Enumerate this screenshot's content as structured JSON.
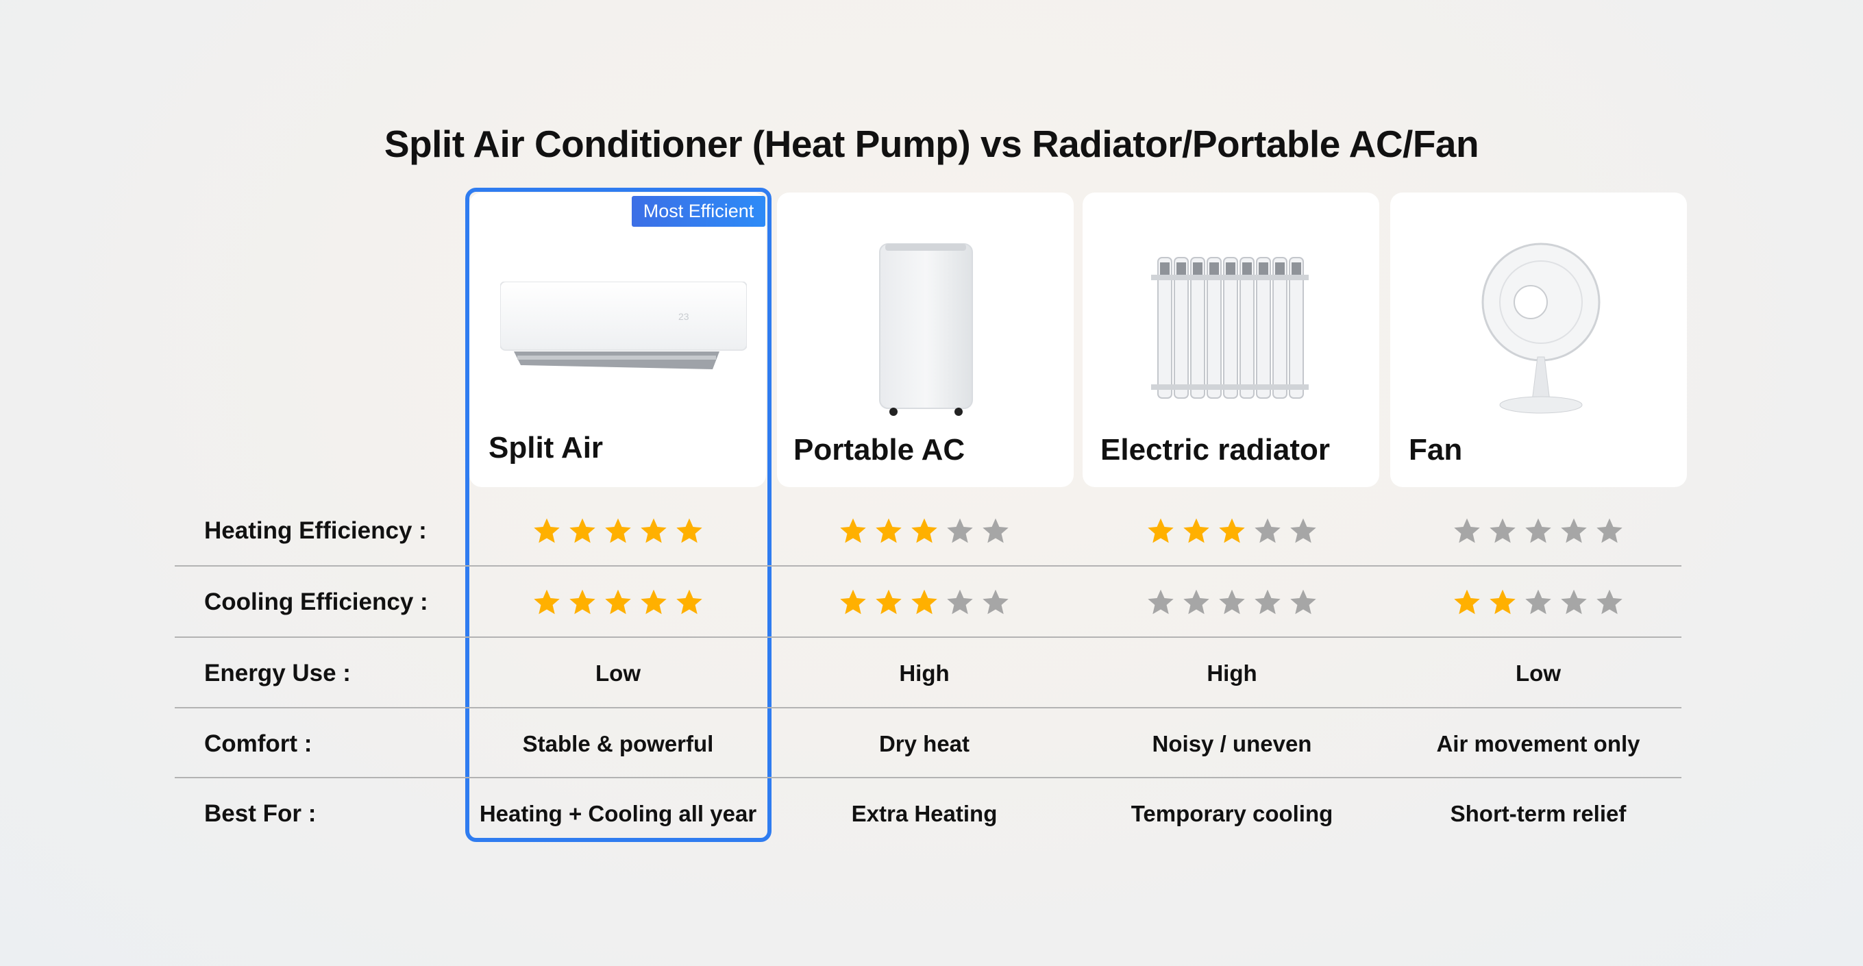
{
  "title": "Split Air Conditioner (Heat Pump) vs Radiator/Portable AC/Fan",
  "badge": "Most Efficient",
  "colors": {
    "highlight": "#2f7cf0",
    "star_on": "#ffb000",
    "star_off": "#a6a6a6"
  },
  "products": [
    {
      "name": "Split Air",
      "icon": "split-air-conditioner-image"
    },
    {
      "name": "Portable AC",
      "icon": "portable-ac-image"
    },
    {
      "name": "Electric radiator",
      "icon": "electric-radiator-image"
    },
    {
      "name": "Fan",
      "icon": "desk-fan-image"
    }
  ],
  "rows": [
    {
      "label": "Heating Efficiency :",
      "type": "stars",
      "max": 5,
      "values": [
        5,
        3,
        3,
        0
      ]
    },
    {
      "label": "Cooling Efficiency :",
      "type": "stars",
      "max": 5,
      "values": [
        5,
        3,
        0,
        2
      ]
    },
    {
      "label": "Energy Use :",
      "type": "text",
      "values": [
        "Low",
        "High",
        "High",
        "Low"
      ]
    },
    {
      "label": "Comfort :",
      "type": "text",
      "values": [
        "Stable & powerful",
        "Dry heat",
        "Noisy / uneven",
        "Air movement only"
      ]
    },
    {
      "label": "Best For :",
      "type": "text",
      "values": [
        "Heating + Cooling all year",
        "Extra Heating",
        "Temporary cooling",
        "Short-term relief"
      ]
    }
  ]
}
